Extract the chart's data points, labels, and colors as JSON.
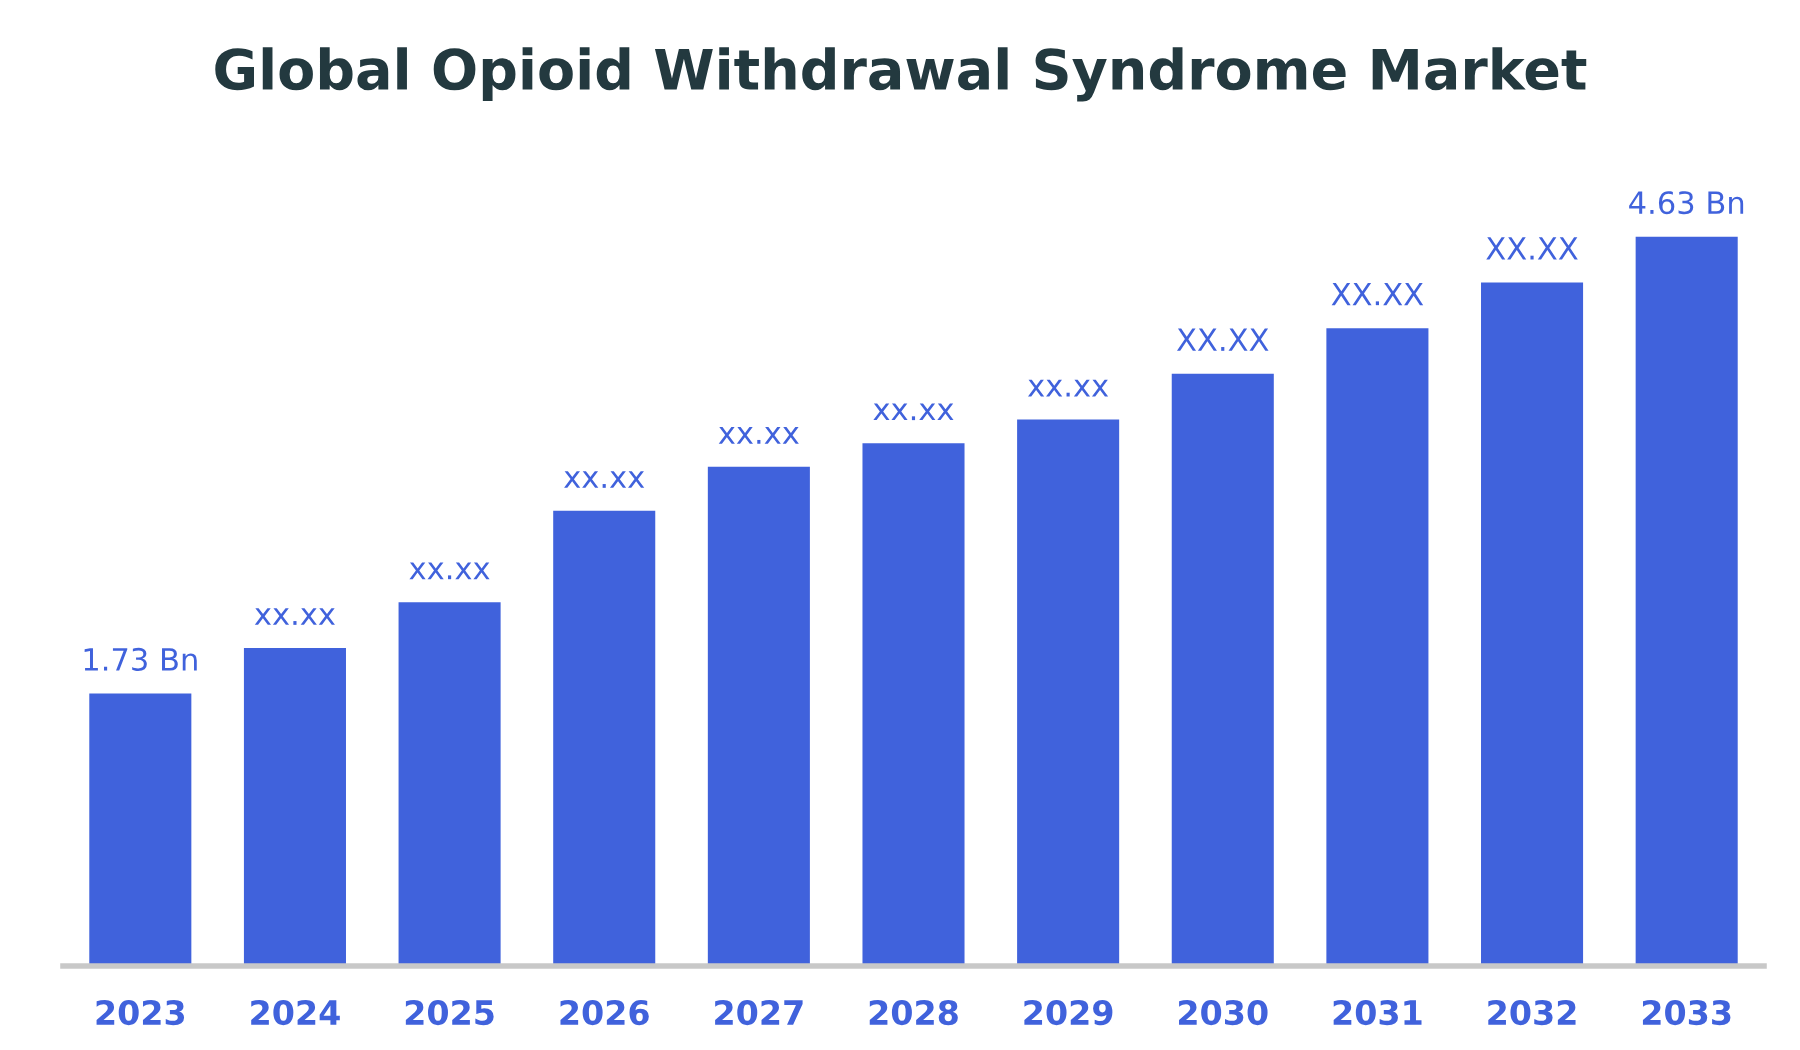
{
  "chart_data": {
    "type": "bar",
    "title": "Global Opioid Withdrawal Syndrome Market",
    "categories": [
      "2023",
      "2024",
      "2025",
      "2026",
      "2027",
      "2028",
      "2029",
      "2030",
      "2031",
      "2032",
      "2033"
    ],
    "values": [
      1.73,
      2.02,
      2.31,
      2.89,
      3.17,
      3.32,
      3.47,
      3.76,
      4.05,
      4.34,
      4.63
    ],
    "value_labels": [
      "1.73 Bn",
      "xx.xx",
      "xx.xx",
      "xx.xx",
      "xx.xx",
      "xx.xx",
      "xx.xx",
      "XX.XX",
      "XX.XX",
      "XX.XX",
      "4.63 Bn"
    ],
    "color": "#4062dc",
    "grid": false,
    "legend": false
  }
}
